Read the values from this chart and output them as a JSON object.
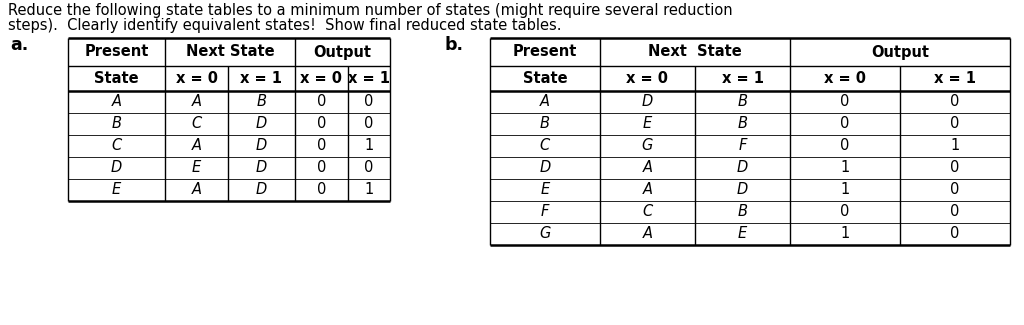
{
  "title_line1": "Reduce the following state tables to a minimum number of states (might require several reduction",
  "title_line2": "steps).  Clearly identify equivalent states!  Show final reduced state tables.",
  "label_a": "a.",
  "label_b": "b.",
  "table_a": {
    "rows": [
      [
        "A",
        "A",
        "B",
        "0",
        "0"
      ],
      [
        "B",
        "C",
        "D",
        "0",
        "0"
      ],
      [
        "C",
        "A",
        "D",
        "0",
        "1"
      ],
      [
        "D",
        "E",
        "D",
        "0",
        "0"
      ],
      [
        "E",
        "A",
        "D",
        "0",
        "1"
      ]
    ]
  },
  "table_b": {
    "rows": [
      [
        "A",
        "D",
        "B",
        "0",
        "0"
      ],
      [
        "B",
        "E",
        "B",
        "0",
        "0"
      ],
      [
        "C",
        "G",
        "F",
        "0",
        "1"
      ],
      [
        "D",
        "A",
        "D",
        "1",
        "0"
      ],
      [
        "E",
        "A",
        "D",
        "1",
        "0"
      ],
      [
        "F",
        "C",
        "B",
        "0",
        "0"
      ],
      [
        "G",
        "A",
        "E",
        "1",
        "0"
      ]
    ]
  },
  "bg_color": "#ffffff",
  "text_color": "#000000",
  "font_size_title": 10.5,
  "font_size_table": 10.5,
  "font_size_label": 12.5
}
